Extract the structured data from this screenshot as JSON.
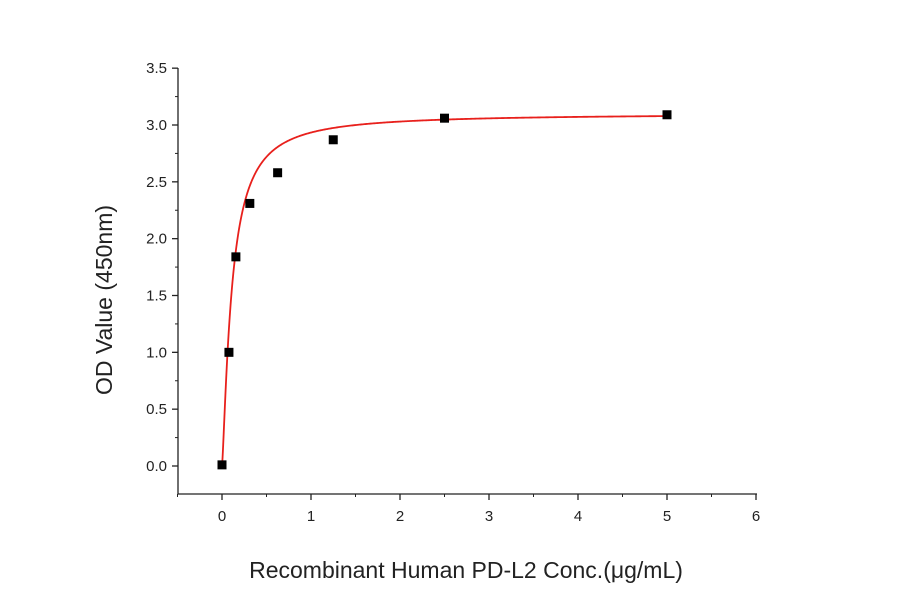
{
  "chart_data": {
    "type": "scatter",
    "title": "",
    "xlabel": "Recombinant Human PD-L2 Conc.(μg/mL)",
    "ylabel": "OD Value (450nm)",
    "xlim": [
      -0.5,
      6
    ],
    "ylim": [
      -0.15,
      3.5
    ],
    "x_ticks": [
      0,
      1,
      2,
      3,
      4,
      5,
      6
    ],
    "x_tick_labels": [
      "0",
      "1",
      "2",
      "3",
      "4",
      "5",
      "6"
    ],
    "y_ticks": [
      0.0,
      0.5,
      1.0,
      1.5,
      2.0,
      2.5,
      3.0,
      3.5
    ],
    "y_tick_labels": [
      "0.0",
      "0.5",
      "1.0",
      "1.5",
      "2.0",
      "2.5",
      "3.0",
      "3.5"
    ],
    "grid": false,
    "series": [
      {
        "type": "scatter",
        "marker": "square",
        "color": "#000000",
        "points": [
          {
            "x": 0,
            "y": 0.01
          },
          {
            "x": 0.078,
            "y": 1.0
          },
          {
            "x": 0.156,
            "y": 1.84
          },
          {
            "x": 0.3125,
            "y": 2.31
          },
          {
            "x": 0.625,
            "y": 2.58
          },
          {
            "x": 1.25,
            "y": 2.87
          },
          {
            "x": 2.5,
            "y": 3.06
          },
          {
            "x": 5,
            "y": 3.09
          }
        ]
      },
      {
        "type": "line",
        "color": "#e8201c",
        "fit": {
          "model": "four-parameter logistic",
          "bottom": 0.0,
          "top": 3.1,
          "ec50": 0.11,
          "hill": 1.3
        }
      }
    ]
  }
}
